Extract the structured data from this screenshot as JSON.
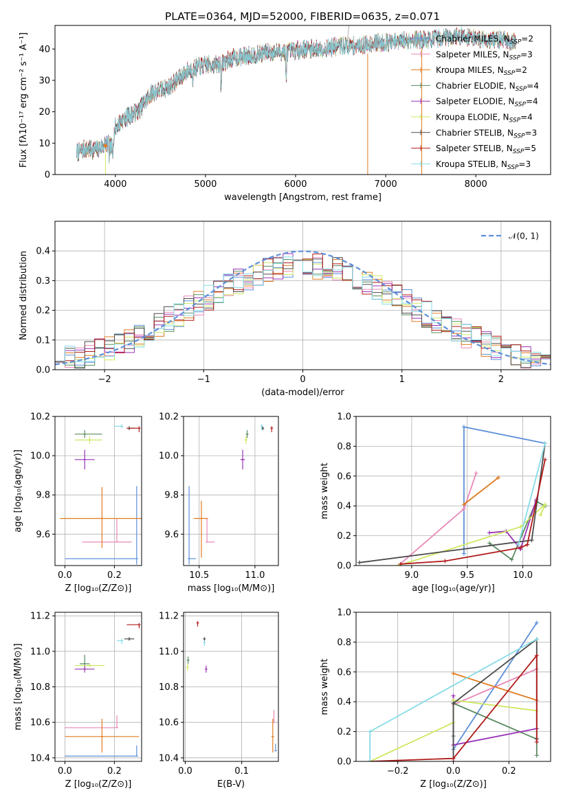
{
  "title": "PLATE=0364, MJD=52000, FIBERID=0635, z=0.071",
  "chart_data": [
    {
      "id": "spectrum",
      "type": "line",
      "xlabel": "wavelength [Angstrom, rest frame]",
      "ylabel": "Flux [fλ10⁻¹⁷ erg cm⁻² s⁻¹ A⁻¹]",
      "xlim": [
        3330,
        8830
      ],
      "ylim": [
        0,
        47.5
      ],
      "xticks": [
        4000,
        5000,
        6000,
        7000,
        8000
      ],
      "yticks": [
        0,
        10,
        20,
        30,
        40
      ],
      "grid": false,
      "legend_placement": "upper right",
      "continuum": [
        [
          3570,
          7
        ],
        [
          3650,
          8
        ],
        [
          3800,
          8
        ],
        [
          3900,
          10
        ],
        [
          3960,
          8.5
        ],
        [
          4000,
          15
        ],
        [
          4100,
          18
        ],
        [
          4250,
          20
        ],
        [
          4400,
          26
        ],
        [
          4600,
          28
        ],
        [
          4800,
          33
        ],
        [
          5000,
          35
        ],
        [
          5150,
          35
        ],
        [
          5300,
          37
        ],
        [
          5500,
          38
        ],
        [
          5700,
          39
        ],
        [
          5900,
          39
        ],
        [
          6100,
          40
        ],
        [
          6300,
          40
        ],
        [
          6500,
          41
        ],
        [
          6700,
          41
        ],
        [
          6900,
          42
        ],
        [
          7100,
          42
        ],
        [
          7300,
          43
        ],
        [
          7500,
          43
        ],
        [
          7700,
          44
        ],
        [
          7900,
          44
        ],
        [
          8100,
          43
        ],
        [
          8300,
          43
        ],
        [
          8450,
          42
        ]
      ],
      "series": [
        {
          "name": "Chabrier MILES, N_SSP=2",
          "color": "#5b8fd9"
        },
        {
          "name": "Salpeter MILES, N_SSP=3",
          "color": "#e887b6"
        },
        {
          "name": "Kroupa MILES, N_SSP=2",
          "color": "#e07b20"
        },
        {
          "name": "Chabrier ELODIE, N_SSP=4",
          "color": "#5a8a60"
        },
        {
          "name": "Salpeter ELODIE, N_SSP=4",
          "color": "#9932b5"
        },
        {
          "name": "Kroupa ELODIE, N_SSP=4",
          "color": "#cde860"
        },
        {
          "name": "Chabrier STELIB, N_SSP=3",
          "color": "#4a4a4a"
        },
        {
          "name": "Salpeter STELIB, N_SSP=5",
          "color": "#b01a1a"
        },
        {
          "name": "Kroupa STELIB, N_SSP=3",
          "color": "#85dbe6"
        }
      ],
      "legend_labels": [
        {
          "base": "Chabrier MILES, N",
          "sub": "SSP",
          "tail": "=2"
        },
        {
          "base": "Salpeter MILES, N",
          "sub": "SSP",
          "tail": "=3"
        },
        {
          "base": "Kroupa MILES, N",
          "sub": "SSP",
          "tail": "=2"
        },
        {
          "base": "Chabrier ELODIE, N",
          "sub": "SSP",
          "tail": "=4"
        },
        {
          "base": "Salpeter ELODIE, N",
          "sub": "SSP",
          "tail": "=4"
        },
        {
          "base": "Kroupa ELODIE, N",
          "sub": "SSP",
          "tail": "=4"
        },
        {
          "base": "Chabrier STELIB, N",
          "sub": "SSP",
          "tail": "=3"
        },
        {
          "base": "Salpeter STELIB, N",
          "sub": "SSP",
          "tail": "=5"
        },
        {
          "base": "Kroupa STELIB, N",
          "sub": "SSP",
          "tail": "=3"
        }
      ]
    },
    {
      "id": "residuals",
      "type": "line",
      "xlabel": "(data-model)/error",
      "ylabel": "Normed distribution",
      "xlim": [
        -2.5,
        2.5
      ],
      "ylim": [
        0,
        0.5
      ],
      "xticks": [
        -2,
        -1,
        0,
        1,
        2
      ],
      "yticks": [
        0.0,
        0.1,
        0.2,
        0.3,
        0.4
      ],
      "grid": true,
      "legend_placement": "upper right",
      "gaussian_label": "𝒩(0, 1)",
      "gaussian_color": "#5b8fd9"
    },
    {
      "id": "age_vs_Z",
      "type": "scatter",
      "xlabel": "Z [log₁₀(Z/Z⊙)]",
      "ylabel": "age  [log₁₀(age/yr)]",
      "xlim": [
        -0.04,
        0.31
      ],
      "ylim": [
        9.44,
        10.2
      ],
      "xticks": [
        0.0,
        0.2
      ],
      "yticks": [
        9.6,
        9.8,
        10.0,
        10.2
      ],
      "grid": true,
      "points": [
        {
          "x": 0.29,
          "y": 9.475,
          "xerr": [
            0.29,
            0.0
          ],
          "yerr": [
            0.03,
            0.37
          ],
          "color": "#5b8fd9"
        },
        {
          "x": 0.21,
          "y": 9.56,
          "xerr": [
            0.14,
            0.06
          ],
          "yerr": [
            0.0,
            0.12
          ],
          "color": "#e887b6"
        },
        {
          "x": 0.15,
          "y": 9.68,
          "xerr": [
            0.17,
            0.16
          ],
          "yerr": [
            0.15,
            0.16
          ],
          "color": "#e07b20"
        },
        {
          "x": 0.08,
          "y": 10.11,
          "xerr": [
            0.04,
            0.07
          ],
          "yerr": [
            0.02,
            0.02
          ],
          "color": "#5a8a60"
        },
        {
          "x": 0.08,
          "y": 9.98,
          "xerr": [
            0.04,
            0.04
          ],
          "yerr": [
            0.05,
            0.05
          ],
          "color": "#9932b5"
        },
        {
          "x": 0.1,
          "y": 10.08,
          "xerr": [
            0.06,
            0.05
          ],
          "yerr": [
            0.02,
            0.02
          ],
          "color": "#cde860"
        },
        {
          "x": 0.26,
          "y": 10.14,
          "xerr": [
            0.01,
            0.02
          ],
          "yerr": [
            0.01,
            0.01
          ],
          "color": "#4a4a4a"
        },
        {
          "x": 0.3,
          "y": 10.14,
          "xerr": [
            0.05,
            0.0
          ],
          "yerr": [
            0.02,
            0.01
          ],
          "color": "#b01a1a"
        },
        {
          "x": 0.23,
          "y": 10.15,
          "xerr": [
            0.03,
            0.0
          ],
          "yerr": [
            0.01,
            0.01
          ],
          "color": "#85dbe6"
        }
      ]
    },
    {
      "id": "age_vs_mass",
      "type": "scatter",
      "xlabel": "mass [log₁₀(M/M⊙)]",
      "ylabel": "",
      "xlim": [
        10.36,
        11.21
      ],
      "ylim": [
        9.44,
        10.2
      ],
      "xticks": [
        10.5,
        11.0
      ],
      "yticks": [
        9.6,
        9.8,
        10.0,
        10.2
      ],
      "grid": true,
      "points": [
        {
          "x": 10.41,
          "y": 9.475,
          "xerr": [
            0.0,
            0.06
          ],
          "yerr": [
            0.03,
            0.37
          ],
          "color": "#5b8fd9"
        },
        {
          "x": 10.57,
          "y": 9.56,
          "xerr": [
            0.0,
            0.07
          ],
          "yerr": [
            0.0,
            0.12
          ],
          "color": "#e887b6"
        },
        {
          "x": 10.52,
          "y": 9.68,
          "xerr": [
            0.07,
            0.06
          ],
          "yerr": [
            0.2,
            0.09
          ],
          "color": "#e07b20"
        },
        {
          "x": 10.93,
          "y": 10.11,
          "xerr": [
            0.01,
            0.01
          ],
          "yerr": [
            0.02,
            0.02
          ],
          "color": "#5a8a60"
        },
        {
          "x": 10.89,
          "y": 9.98,
          "xerr": [
            0.02,
            0.02
          ],
          "yerr": [
            0.05,
            0.05
          ],
          "color": "#9932b5"
        },
        {
          "x": 10.92,
          "y": 10.08,
          "xerr": [
            0.01,
            0.01
          ],
          "yerr": [
            0.02,
            0.02
          ],
          "color": "#cde860"
        },
        {
          "x": 11.07,
          "y": 10.14,
          "xerr": [
            0.01,
            0.01
          ],
          "yerr": [
            0.01,
            0.01
          ],
          "color": "#4a4a4a"
        },
        {
          "x": 11.15,
          "y": 10.14,
          "xerr": [
            0.0,
            0.0
          ],
          "yerr": [
            0.02,
            0.01
          ],
          "color": "#b01a1a"
        },
        {
          "x": 11.06,
          "y": 10.15,
          "xerr": [
            0.0,
            0.0
          ],
          "yerr": [
            0.02,
            0.01
          ],
          "color": "#85dbe6"
        }
      ]
    },
    {
      "id": "weight_vs_age",
      "type": "line",
      "xlabel": "age  [log₁₀(age/yr)]",
      "ylabel": "mass weight",
      "xlim": [
        8.5,
        10.25
      ],
      "ylim": [
        0,
        1.0
      ],
      "xticks": [
        9.0,
        9.5,
        10.0
      ],
      "yticks": [
        0.0,
        0.2,
        0.4,
        0.6,
        0.8,
        1.0
      ],
      "grid": true,
      "series": [
        {
          "color": "#5b8fd9",
          "x": [
            9.47,
            9.47,
            10.2
          ],
          "y": [
            0.08,
            0.93,
            0.82
          ]
        },
        {
          "color": "#e887b6",
          "x": [
            8.88,
            9.47,
            9.58
          ],
          "y": [
            0.0,
            0.38,
            0.62
          ]
        },
        {
          "color": "#e07b20",
          "x": [
            9.47,
            9.78
          ],
          "y": [
            0.41,
            0.59
          ]
        },
        {
          "color": "#5a8a60",
          "x": [
            9.7,
            9.9,
            10.12,
            10.2
          ],
          "y": [
            0.15,
            0.04,
            0.43,
            0.4
          ]
        },
        {
          "color": "#9932b5",
          "x": [
            9.7,
            9.85,
            9.98,
            10.12
          ],
          "y": [
            0.22,
            0.23,
            0.11,
            0.44
          ]
        },
        {
          "color": "#cde860",
          "x": [
            8.88,
            9.98,
            10.2,
            10.16
          ],
          "y": [
            0.0,
            0.26,
            0.41,
            0.34
          ]
        },
        {
          "color": "#4a4a4a",
          "x": [
            8.53,
            10.08,
            10.2
          ],
          "y": [
            0.02,
            0.17,
            0.82
          ]
        },
        {
          "color": "#b01a1a",
          "x": [
            8.9,
            9.3,
            9.98,
            10.04,
            10.2
          ],
          "y": [
            0.01,
            0.03,
            0.12,
            0.14,
            0.71
          ]
        },
        {
          "color": "#85dbe6",
          "x": [
            9.96,
            10.2
          ],
          "y": [
            0.14,
            0.82
          ]
        }
      ]
    },
    {
      "id": "mass_vs_Z",
      "type": "scatter",
      "xlabel": "Z [log₁₀(Z/Z⊙)]",
      "ylabel": "mass [log₁₀(M/M⊙)]",
      "xlim": [
        -0.04,
        0.31
      ],
      "ylim": [
        10.38,
        11.22
      ],
      "xticks": [
        0.0,
        0.2
      ],
      "yticks": [
        10.4,
        10.6,
        10.8,
        11.0,
        11.2
      ],
      "grid": true,
      "points": [
        {
          "x": 0.29,
          "y": 10.41,
          "xerr": [
            0.29,
            0.0
          ],
          "yerr": [
            0.0,
            0.06
          ],
          "color": "#5b8fd9"
        },
        {
          "x": 0.21,
          "y": 10.57,
          "xerr": [
            0.21,
            0.0
          ],
          "yerr": [
            0.0,
            0.07
          ],
          "color": "#e887b6"
        },
        {
          "x": 0.15,
          "y": 10.52,
          "xerr": [
            0.15,
            0.15
          ],
          "yerr": [
            0.09,
            0.1
          ],
          "color": "#e07b20"
        },
        {
          "x": 0.08,
          "y": 10.93,
          "xerr": [
            0.02,
            0.02
          ],
          "yerr": [
            0.03,
            0.05
          ],
          "color": "#5a8a60"
        },
        {
          "x": 0.08,
          "y": 10.9,
          "xerr": [
            0.04,
            0.04
          ],
          "yerr": [
            0.02,
            0.02
          ],
          "color": "#9932b5"
        },
        {
          "x": 0.1,
          "y": 10.92,
          "xerr": [
            0.06,
            0.06
          ],
          "yerr": [
            0.01,
            0.01
          ],
          "color": "#cde860"
        },
        {
          "x": 0.26,
          "y": 11.07,
          "xerr": [
            0.02,
            0.02
          ],
          "yerr": [
            0.01,
            0.01
          ],
          "color": "#4a4a4a"
        },
        {
          "x": 0.3,
          "y": 11.15,
          "xerr": [
            0.05,
            0.0
          ],
          "yerr": [
            0.02,
            0.01
          ],
          "color": "#b01a1a"
        },
        {
          "x": 0.23,
          "y": 11.06,
          "xerr": [
            0.02,
            0.0
          ],
          "yerr": [
            0.02,
            0.01
          ],
          "color": "#85dbe6"
        }
      ]
    },
    {
      "id": "mass_vs_ebv",
      "type": "scatter",
      "xlabel": "E(B-V)",
      "ylabel": "",
      "xlim": [
        -0.003,
        0.165
      ],
      "ylim": [
        10.38,
        11.22
      ],
      "xticks": [
        0.0,
        0.1
      ],
      "yticks": [
        10.4,
        10.6,
        10.8,
        11.0,
        11.2
      ],
      "grid": true,
      "points": [
        {
          "x": 0.16,
          "y": 10.44,
          "yerr": [
            0.0,
            0.04
          ],
          "color": "#5b8fd9"
        },
        {
          "x": 0.157,
          "y": 10.6,
          "yerr": [
            0.0,
            0.07
          ],
          "color": "#e887b6"
        },
        {
          "x": 0.155,
          "y": 10.52,
          "yerr": [
            0.09,
            0.1
          ],
          "color": "#e07b20"
        },
        {
          "x": 0.005,
          "y": 10.95,
          "yerr": [
            0.02,
            0.02
          ],
          "color": "#5a8a60"
        },
        {
          "x": 0.037,
          "y": 10.9,
          "yerr": [
            0.02,
            0.02
          ],
          "color": "#9932b5"
        },
        {
          "x": 0.004,
          "y": 10.91,
          "yerr": [
            0.02,
            0.02
          ],
          "color": "#cde860"
        },
        {
          "x": 0.034,
          "y": 11.07,
          "yerr": [
            0.01,
            0.01
          ],
          "color": "#4a4a4a"
        },
        {
          "x": 0.022,
          "y": 11.16,
          "yerr": [
            0.02,
            0.01
          ],
          "color": "#b01a1a"
        },
        {
          "x": 0.034,
          "y": 11.05,
          "yerr": [
            0.02,
            0.01
          ],
          "color": "#85dbe6"
        }
      ]
    },
    {
      "id": "weight_vs_Z",
      "type": "line",
      "xlabel": "Z [log₁₀(Z/Z⊙)]",
      "ylabel": "mass weight",
      "xlim": [
        -0.35,
        0.35
      ],
      "ylim": [
        0,
        1.0
      ],
      "xticks": [
        -0.2,
        0.0,
        0.2
      ],
      "yticks": [
        0.0,
        0.2,
        0.4,
        0.6,
        0.8,
        1.0
      ],
      "grid": true,
      "series": [
        {
          "color": "#5b8fd9",
          "x": [
            0.0,
            0.0,
            0.3
          ],
          "y": [
            0.0,
            0.08,
            0.93
          ]
        },
        {
          "color": "#e887b6",
          "x": [
            0.0,
            0.0,
            0.3
          ],
          "y": [
            0.0,
            0.38,
            0.62
          ]
        },
        {
          "color": "#e07b20",
          "x": [
            0.0,
            0.3
          ],
          "y": [
            0.59,
            0.41
          ]
        },
        {
          "color": "#5a8a60",
          "x": [
            0.0,
            0.0,
            0.3,
            0.3
          ],
          "y": [
            0.17,
            0.39,
            0.15,
            0.04
          ]
        },
        {
          "color": "#9932b5",
          "x": [
            0.0,
            0.0,
            0.3
          ],
          "y": [
            0.44,
            0.11,
            0.22
          ]
        },
        {
          "color": "#cde860",
          "x": [
            -0.3,
            0.0,
            0.0,
            0.3
          ],
          "y": [
            0.0,
            0.26,
            0.41,
            0.34
          ]
        },
        {
          "color": "#4a4a4a",
          "x": [
            0.0,
            0.0,
            0.3,
            0.3
          ],
          "y": [
            0.02,
            0.39,
            0.82,
            0.15
          ]
        },
        {
          "color": "#b01a1a",
          "x": [
            -0.3,
            0.0,
            0.3,
            0.3
          ],
          "y": [
            0.0,
            0.02,
            0.71,
            0.13
          ]
        },
        {
          "color": "#85dbe6",
          "x": [
            -0.3,
            -0.3,
            0.3
          ],
          "y": [
            0.0,
            0.2,
            0.82
          ]
        }
      ]
    }
  ]
}
